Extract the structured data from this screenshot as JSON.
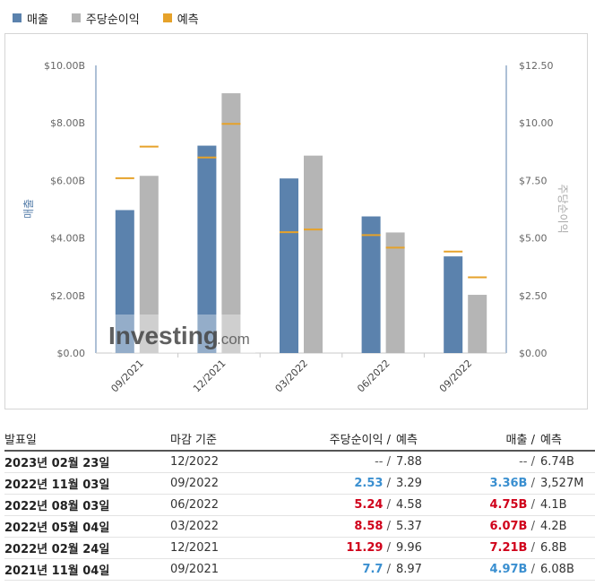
{
  "legend": {
    "revenue": "매출",
    "eps": "주당순이익",
    "forecast": "예측"
  },
  "colors": {
    "revenue": "#5b82ad",
    "eps": "#b5b5b5",
    "forecast": "#e6a22a",
    "up": "#3a8fd0",
    "down": "#d0021b"
  },
  "chart_data": {
    "type": "bar",
    "categories": [
      "09/2021",
      "12/2021",
      "03/2022",
      "06/2022",
      "09/2022"
    ],
    "left_axis": {
      "label": "매출",
      "ticks": [
        "$0.00",
        "$2.00B",
        "$4.00B",
        "$6.00B",
        "$8.00B",
        "$10.00B"
      ],
      "ylim": [
        0,
        10
      ]
    },
    "right_axis": {
      "label": "주당순이익",
      "ticks": [
        "$0.00",
        "$2.50",
        "$5.00",
        "$7.50",
        "$10.00",
        "$12.50"
      ],
      "ylim": [
        0,
        12.5
      ]
    },
    "series": [
      {
        "name": "매출",
        "axis": "left",
        "values": [
          4.97,
          7.21,
          6.07,
          4.75,
          3.36
        ]
      },
      {
        "name": "주당순이익",
        "axis": "right",
        "values": [
          7.7,
          11.29,
          8.58,
          5.24,
          2.53
        ]
      }
    ],
    "forecast": {
      "name": "예측",
      "revenue": [
        6.08,
        6.8,
        4.2,
        4.1,
        3.527
      ],
      "eps": [
        8.97,
        9.96,
        5.37,
        4.58,
        3.29
      ]
    },
    "watermark": {
      "text": "Investing",
      "suffix": ".com"
    }
  },
  "table": {
    "headers": {
      "date": "발표일",
      "period": "마감 기준",
      "eps": "주당순이익",
      "eps_forecast": "예측",
      "revenue": "매출",
      "revenue_forecast": "예측",
      "slash": "/"
    },
    "rows": [
      {
        "date": "2023년 02월 23일",
        "period": "12/2022",
        "eps": "--",
        "eps_forecast": "7.88",
        "revenue": "--",
        "revenue_forecast": "6.74B",
        "eps_dir": "neutral",
        "rev_dir": "neutral"
      },
      {
        "date": "2022년 11월 03일",
        "period": "09/2022",
        "eps": "2.53",
        "eps_forecast": "3.29",
        "revenue": "3.36B",
        "revenue_forecast": "3,527M",
        "eps_dir": "up",
        "rev_dir": "up"
      },
      {
        "date": "2022년 08월 03일",
        "period": "06/2022",
        "eps": "5.24",
        "eps_forecast": "4.58",
        "revenue": "4.75B",
        "revenue_forecast": "4.1B",
        "eps_dir": "down",
        "rev_dir": "down"
      },
      {
        "date": "2022년 05월 04일",
        "period": "03/2022",
        "eps": "8.58",
        "eps_forecast": "5.37",
        "revenue": "6.07B",
        "revenue_forecast": "4.2B",
        "eps_dir": "down",
        "rev_dir": "down"
      },
      {
        "date": "2022년 02월 24일",
        "period": "12/2021",
        "eps": "11.29",
        "eps_forecast": "9.96",
        "revenue": "7.21B",
        "revenue_forecast": "6.8B",
        "eps_dir": "down",
        "rev_dir": "down"
      },
      {
        "date": "2021년 11월 04일",
        "period": "09/2021",
        "eps": "7.7",
        "eps_forecast": "8.97",
        "revenue": "4.97B",
        "revenue_forecast": "6.08B",
        "eps_dir": "up",
        "rev_dir": "up"
      }
    ]
  }
}
